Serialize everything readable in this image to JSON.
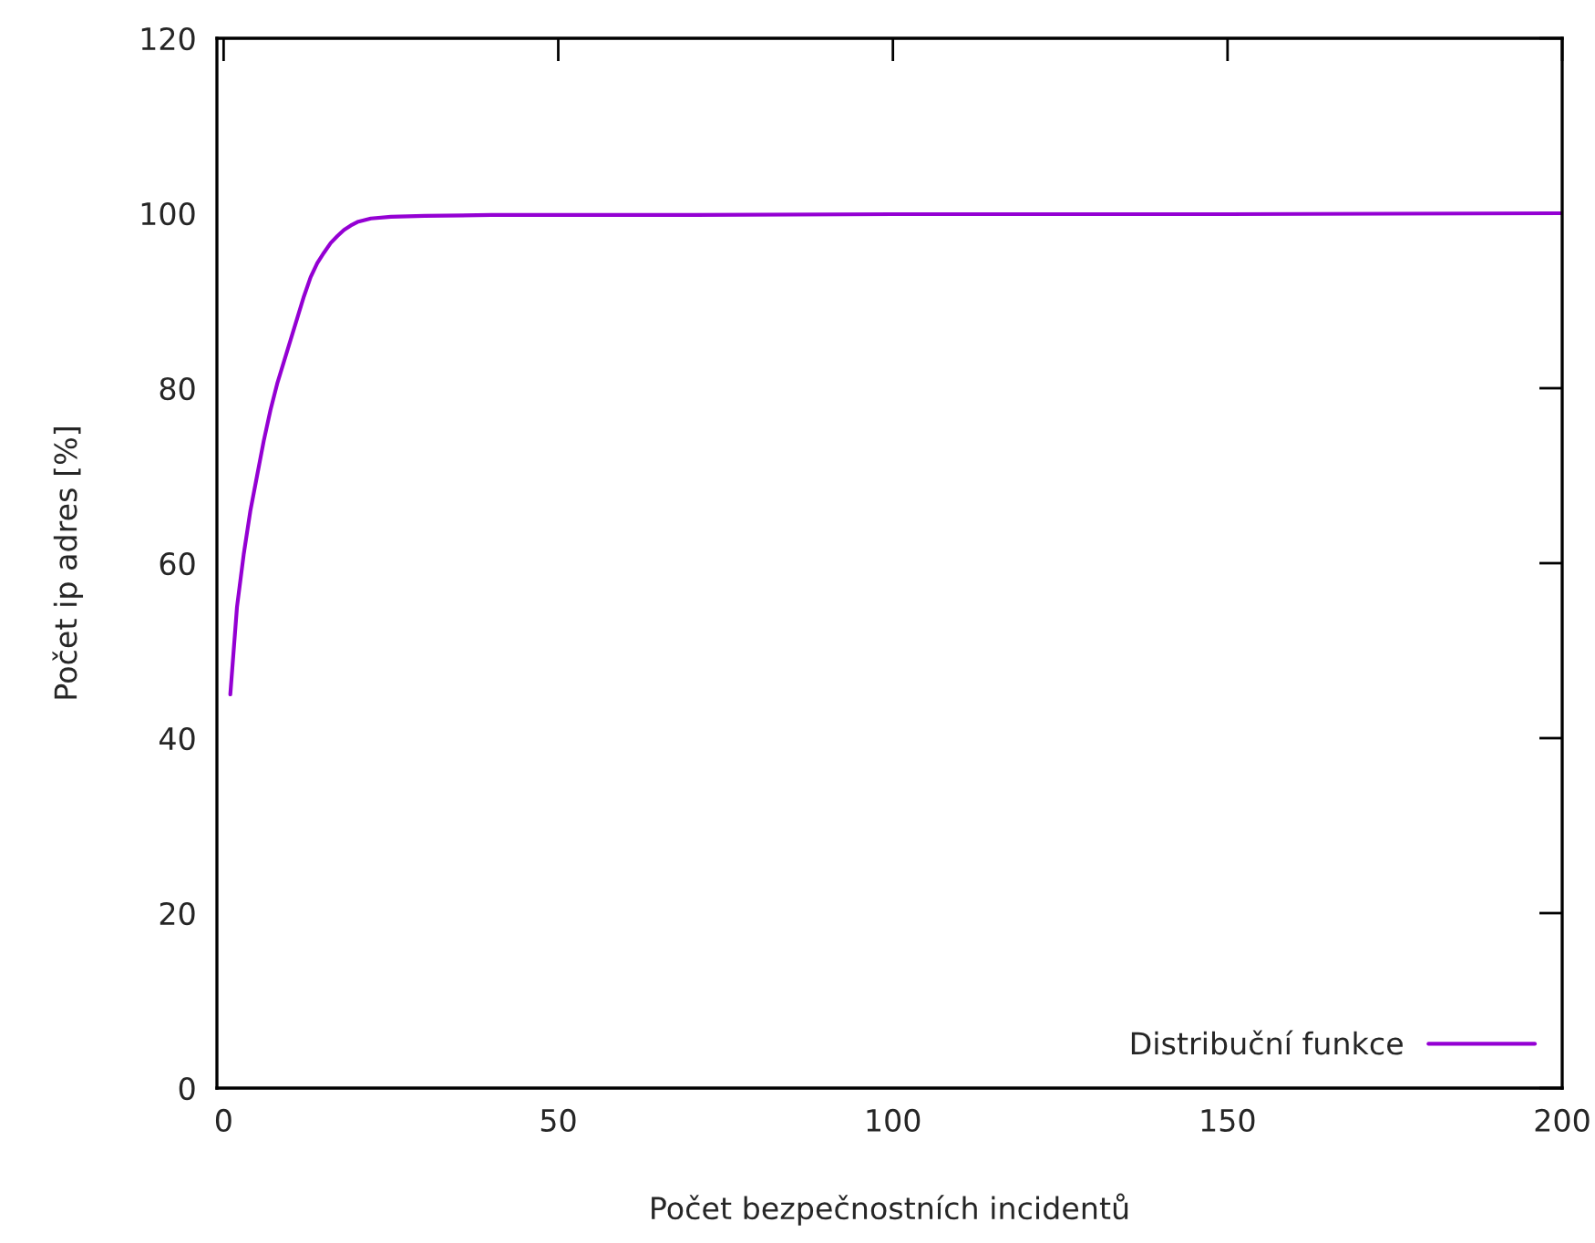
{
  "chart_data": {
    "type": "line",
    "xlabel": "Počet bezpečnostních incidentů",
    "ylabel": "Počet ip adres [%]",
    "xlim": [
      -1,
      200
    ],
    "xticks": [
      0,
      50,
      100,
      150,
      200
    ],
    "ylim": [
      0,
      120
    ],
    "yticks": [
      0,
      20,
      40,
      60,
      80,
      100,
      120
    ],
    "grid": false,
    "legend": "bottom right",
    "series": [
      {
        "name": "Distribuční funkce",
        "color": "#9400d3",
        "x": [
          1,
          2,
          3,
          4,
          5,
          6,
          7,
          8,
          9,
          10,
          11,
          12,
          13,
          14,
          15,
          16,
          17,
          18,
          19,
          20,
          22,
          25,
          30,
          40,
          70,
          100,
          150,
          200
        ],
        "values": [
          45,
          55,
          61,
          66,
          70,
          74,
          77.5,
          80.5,
          83,
          85.5,
          88,
          90.5,
          92.7,
          94.3,
          95.5,
          96.6,
          97.4,
          98.1,
          98.6,
          99,
          99.4,
          99.6,
          99.7,
          99.8,
          99.8,
          99.9,
          99.9,
          100
        ]
      }
    ]
  }
}
